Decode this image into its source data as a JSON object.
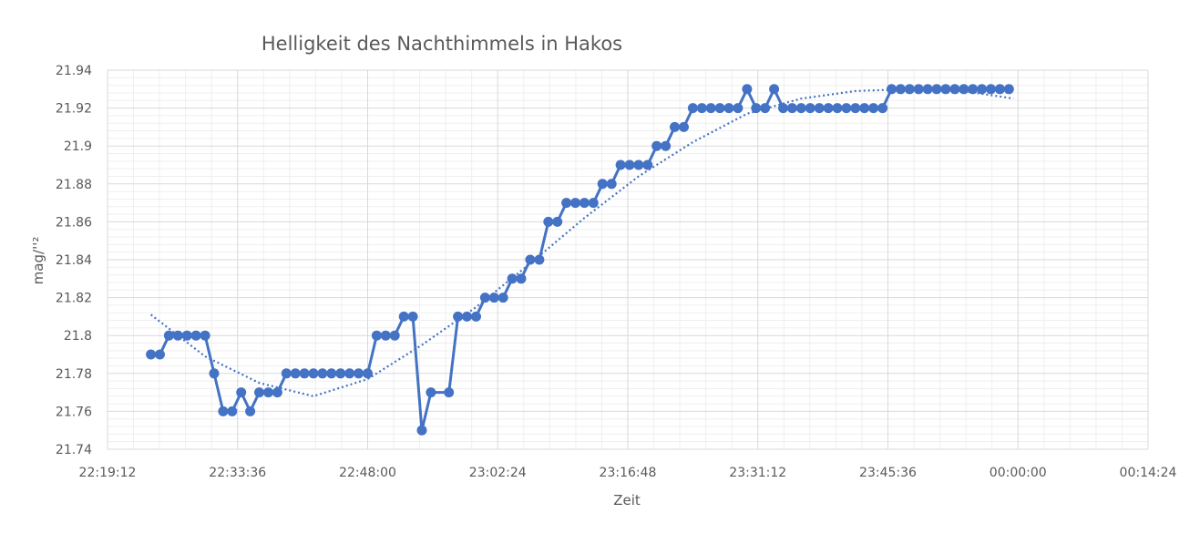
{
  "chart_data": {
    "type": "line",
    "title": "Helligkeit des Nachthimmels in Hakos",
    "xlabel": "Zeit",
    "ylabel": "mag/''²",
    "ylim": [
      21.74,
      21.94
    ],
    "xlim": [
      "22:19:12",
      "00:14:24"
    ],
    "y_ticks": [
      "21.94",
      "21.92",
      "21.9",
      "21.88",
      "21.86",
      "21.84",
      "21.82",
      "21.8",
      "21.78",
      "21.76",
      "21.74"
    ],
    "x_ticks": [
      "22:19:12",
      "22:33:36",
      "22:48:00",
      "23:02:24",
      "23:16:48",
      "23:31:12",
      "23:45:36",
      "00:00:00",
      "00:14:24"
    ],
    "grid": true,
    "colors": {
      "series": "#4472C4",
      "grid": "#d9d9d9",
      "text": "#595959"
    },
    "series": [
      {
        "values": [
          {
            "x": "22:24:00",
            "y": 21.79
          },
          {
            "x": "22:25:00",
            "y": 21.79
          },
          {
            "x": "22:26:00",
            "y": 21.8
          },
          {
            "x": "22:27:00",
            "y": 21.8
          },
          {
            "x": "22:28:00",
            "y": 21.8
          },
          {
            "x": "22:29:00",
            "y": 21.8
          },
          {
            "x": "22:30:00",
            "y": 21.8
          },
          {
            "x": "22:31:00",
            "y": 21.78
          },
          {
            "x": "22:32:00",
            "y": 21.76
          },
          {
            "x": "22:33:00",
            "y": 21.76
          },
          {
            "x": "22:34:00",
            "y": 21.77
          },
          {
            "x": "22:35:00",
            "y": 21.76
          },
          {
            "x": "22:36:00",
            "y": 21.77
          },
          {
            "x": "22:37:00",
            "y": 21.77
          },
          {
            "x": "22:38:00",
            "y": 21.77
          },
          {
            "x": "22:39:00",
            "y": 21.78
          },
          {
            "x": "22:40:00",
            "y": 21.78
          },
          {
            "x": "22:41:00",
            "y": 21.78
          },
          {
            "x": "22:42:00",
            "y": 21.78
          },
          {
            "x": "22:43:00",
            "y": 21.78
          },
          {
            "x": "22:44:00",
            "y": 21.78
          },
          {
            "x": "22:45:00",
            "y": 21.78
          },
          {
            "x": "22:46:00",
            "y": 21.78
          },
          {
            "x": "22:47:00",
            "y": 21.78
          },
          {
            "x": "22:48:00",
            "y": 21.78
          },
          {
            "x": "22:49:00",
            "y": 21.8
          },
          {
            "x": "22:50:00",
            "y": 21.8
          },
          {
            "x": "22:51:00",
            "y": 21.8
          },
          {
            "x": "22:52:00",
            "y": 21.81
          },
          {
            "x": "22:53:00",
            "y": 21.81
          },
          {
            "x": "22:54:00",
            "y": 21.75
          },
          {
            "x": "22:55:00",
            "y": 21.77
          },
          {
            "x": "22:57:00",
            "y": 21.77
          },
          {
            "x": "22:58:00",
            "y": 21.81
          },
          {
            "x": "22:59:00",
            "y": 21.81
          },
          {
            "x": "23:00:00",
            "y": 21.81
          },
          {
            "x": "23:01:00",
            "y": 21.82
          },
          {
            "x": "23:02:00",
            "y": 21.82
          },
          {
            "x": "23:03:00",
            "y": 21.82
          },
          {
            "x": "23:04:00",
            "y": 21.83
          },
          {
            "x": "23:05:00",
            "y": 21.83
          },
          {
            "x": "23:06:00",
            "y": 21.84
          },
          {
            "x": "23:07:00",
            "y": 21.84
          },
          {
            "x": "23:08:00",
            "y": 21.86
          },
          {
            "x": "23:09:00",
            "y": 21.86
          },
          {
            "x": "23:10:00",
            "y": 21.87
          },
          {
            "x": "23:11:00",
            "y": 21.87
          },
          {
            "x": "23:12:00",
            "y": 21.87
          },
          {
            "x": "23:13:00",
            "y": 21.87
          },
          {
            "x": "23:14:00",
            "y": 21.88
          },
          {
            "x": "23:15:00",
            "y": 21.88
          },
          {
            "x": "23:16:00",
            "y": 21.89
          },
          {
            "x": "23:17:00",
            "y": 21.89
          },
          {
            "x": "23:18:00",
            "y": 21.89
          },
          {
            "x": "23:19:00",
            "y": 21.89
          },
          {
            "x": "23:20:00",
            "y": 21.9
          },
          {
            "x": "23:21:00",
            "y": 21.9
          },
          {
            "x": "23:22:00",
            "y": 21.91
          },
          {
            "x": "23:23:00",
            "y": 21.91
          },
          {
            "x": "23:24:00",
            "y": 21.92
          },
          {
            "x": "23:25:00",
            "y": 21.92
          },
          {
            "x": "23:26:00",
            "y": 21.92
          },
          {
            "x": "23:27:00",
            "y": 21.92
          },
          {
            "x": "23:28:00",
            "y": 21.92
          },
          {
            "x": "23:29:00",
            "y": 21.92
          },
          {
            "x": "23:30:00",
            "y": 21.93
          },
          {
            "x": "23:31:00",
            "y": 21.92
          },
          {
            "x": "23:32:00",
            "y": 21.92
          },
          {
            "x": "23:33:00",
            "y": 21.93
          },
          {
            "x": "23:34:00",
            "y": 21.92
          },
          {
            "x": "23:35:00",
            "y": 21.92
          },
          {
            "x": "23:36:00",
            "y": 21.92
          },
          {
            "x": "23:37:00",
            "y": 21.92
          },
          {
            "x": "23:38:00",
            "y": 21.92
          },
          {
            "x": "23:39:00",
            "y": 21.92
          },
          {
            "x": "23:40:00",
            "y": 21.92
          },
          {
            "x": "23:41:00",
            "y": 21.92
          },
          {
            "x": "23:42:00",
            "y": 21.92
          },
          {
            "x": "23:43:00",
            "y": 21.92
          },
          {
            "x": "23:44:00",
            "y": 21.92
          },
          {
            "x": "23:45:00",
            "y": 21.92
          },
          {
            "x": "23:46:00",
            "y": 21.93
          },
          {
            "x": "23:47:00",
            "y": 21.93
          },
          {
            "x": "23:48:00",
            "y": 21.93
          },
          {
            "x": "23:49:00",
            "y": 21.93
          },
          {
            "x": "23:50:00",
            "y": 21.93
          },
          {
            "x": "23:51:00",
            "y": 21.93
          },
          {
            "x": "23:52:00",
            "y": 21.93
          },
          {
            "x": "23:53:00",
            "y": 21.93
          },
          {
            "x": "23:54:00",
            "y": 21.93
          },
          {
            "x": "23:55:00",
            "y": 21.93
          },
          {
            "x": "23:56:00",
            "y": 21.93
          },
          {
            "x": "23:57:00",
            "y": 21.93
          },
          {
            "x": "23:58:00",
            "y": 21.93
          },
          {
            "x": "23:59:00",
            "y": 21.93
          }
        ]
      }
    ],
    "trendline": {
      "style": "dotted",
      "type": "polynomial",
      "values": [
        {
          "x": "22:24:00",
          "y": 21.811
        },
        {
          "x": "22:30:00",
          "y": 21.789
        },
        {
          "x": "22:36:00",
          "y": 21.775
        },
        {
          "x": "22:42:00",
          "y": 21.768
        },
        {
          "x": "22:48:00",
          "y": 21.777
        },
        {
          "x": "22:54:00",
          "y": 21.795
        },
        {
          "x": "23:00:00",
          "y": 21.815
        },
        {
          "x": "23:06:00",
          "y": 21.838
        },
        {
          "x": "23:12:00",
          "y": 21.862
        },
        {
          "x": "23:18:00",
          "y": 21.884
        },
        {
          "x": "23:24:00",
          "y": 21.902
        },
        {
          "x": "23:30:00",
          "y": 21.917
        },
        {
          "x": "23:36:00",
          "y": 21.925
        },
        {
          "x": "23:42:00",
          "y": 21.929
        },
        {
          "x": "23:48:00",
          "y": 21.93
        },
        {
          "x": "23:54:00",
          "y": 21.929
        },
        {
          "x": "23:59:30",
          "y": 21.925
        }
      ]
    }
  }
}
